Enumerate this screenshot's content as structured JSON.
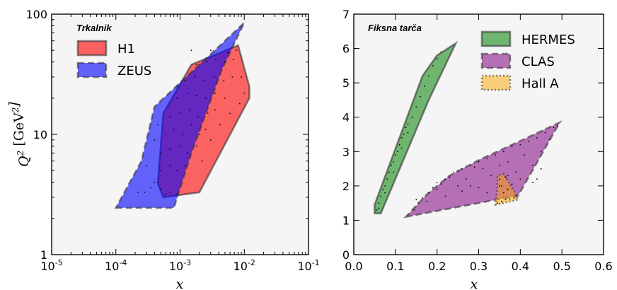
{
  "chart_data": [
    {
      "type": "area",
      "title": "Trkalnik",
      "xlabel": "x",
      "ylabel": "Q^2 [GeV^2]",
      "xscale": "log",
      "yscale": "log",
      "xlim": [
        1e-05,
        0.1
      ],
      "ylim": [
        1,
        100
      ],
      "xticks": [
        1e-05,
        0.0001,
        0.001,
        0.01,
        0.1
      ],
      "xtick_labels": [
        {
          "base": "10",
          "exp": "-5"
        },
        {
          "base": "10",
          "exp": "-4"
        },
        {
          "base": "10",
          "exp": "-3"
        },
        {
          "base": "10",
          "exp": "-2"
        },
        {
          "base": "10",
          "exp": "-1"
        }
      ],
      "yticks": [
        1,
        10,
        100
      ],
      "ytick_labels": [
        "1",
        "10",
        "100"
      ],
      "legend_position": "upper-left",
      "series": [
        {
          "name": "H1",
          "color": "#ff0000",
          "alpha": 0.6,
          "linestyle": "solid",
          "polygon": [
            [
              0.00045,
              3.9
            ],
            [
              0.00055,
              3.0
            ],
            [
              0.002,
              3.3
            ],
            [
              0.012,
              20
            ],
            [
              0.012,
              25
            ],
            [
              0.008,
              55
            ],
            [
              0.0015,
              38
            ],
            [
              0.00055,
              15
            ]
          ]
        },
        {
          "name": "ZEUS",
          "color": "#0000ff",
          "alpha": 0.6,
          "linestyle": "dashed",
          "polygon": [
            [
              0.0001,
              2.45
            ],
            [
              0.00055,
              2.45
            ],
            [
              0.0008,
              2.45
            ],
            [
              0.0015,
              7
            ],
            [
              0.0045,
              35
            ],
            [
              0.01,
              85
            ],
            [
              0.0004,
              17
            ],
            [
              0.00025,
              6
            ]
          ]
        }
      ],
      "points": [
        [
          0.0004,
          4
        ],
        [
          0.0005,
          3.5
        ],
        [
          0.0006,
          3.2
        ],
        [
          0.0007,
          3.3
        ],
        [
          0.0009,
          3.2
        ],
        [
          0.0005,
          5
        ],
        [
          0.0007,
          5.5
        ],
        [
          0.0009,
          5
        ],
        [
          0.0012,
          5.5
        ],
        [
          0.0005,
          7
        ],
        [
          0.0007,
          7.5
        ],
        [
          0.001,
          8
        ],
        [
          0.0013,
          7
        ],
        [
          0.0018,
          8
        ],
        [
          0.0006,
          10
        ],
        [
          0.0008,
          11
        ],
        [
          0.0011,
          10
        ],
        [
          0.0015,
          12
        ],
        [
          0.002,
          10
        ],
        [
          0.0025,
          11
        ],
        [
          0.0007,
          14
        ],
        [
          0.001,
          15
        ],
        [
          0.0014,
          16
        ],
        [
          0.0019,
          14
        ],
        [
          0.0027,
          15
        ],
        [
          0.0035,
          16
        ],
        [
          0.0009,
          20
        ],
        [
          0.0013,
          22
        ],
        [
          0.0018,
          21
        ],
        [
          0.0025,
          20
        ],
        [
          0.0035,
          22
        ],
        [
          0.005,
          20
        ],
        [
          0.0012,
          28
        ],
        [
          0.0017,
          30
        ],
        [
          0.0024,
          28
        ],
        [
          0.0034,
          30
        ],
        [
          0.0048,
          28
        ],
        [
          0.0065,
          30
        ],
        [
          0.0018,
          38
        ],
        [
          0.0026,
          40
        ],
        [
          0.0036,
          42
        ],
        [
          0.005,
          40
        ],
        [
          0.0068,
          42
        ],
        [
          0.0015,
          50
        ],
        [
          0.003,
          50
        ],
        [
          0.0055,
          48
        ],
        [
          0.0075,
          50
        ],
        [
          0.009,
          30
        ],
        [
          0.01,
          22
        ],
        [
          0.0085,
          18
        ],
        [
          0.00028,
          3.3
        ],
        [
          0.00022,
          3.3
        ],
        [
          0.00035,
          3.6
        ],
        [
          0.0003,
          5.5
        ],
        [
          0.0004,
          9
        ],
        [
          0.00045,
          12
        ],
        [
          0.0009,
          25
        ],
        [
          0.0022,
          6
        ],
        [
          0.003,
          9
        ],
        [
          0.0042,
          12
        ],
        [
          0.006,
          15
        ]
      ]
    },
    {
      "type": "area",
      "title": "Fiksna tarča",
      "xlabel": "x",
      "xlim": [
        0,
        0.6
      ],
      "ylim": [
        0,
        7
      ],
      "xticks": [
        0,
        0.1,
        0.2,
        0.3,
        0.4,
        0.5,
        0.6
      ],
      "xtick_labels": [
        "0.0",
        "0.1",
        "0.2",
        "0.3",
        "0.4",
        "0.5",
        "0.6"
      ],
      "yticks": [
        0,
        1,
        2,
        3,
        4,
        5,
        6,
        7
      ],
      "ytick_labels": [
        "0",
        "1",
        "2",
        "3",
        "4",
        "5",
        "6",
        "7"
      ],
      "legend_position": "upper-right",
      "series": [
        {
          "name": "HERMES",
          "color": "#008000",
          "alpha": 0.55,
          "linestyle": "solid",
          "polygon": [
            [
              0.05,
              1.2
            ],
            [
              0.065,
              1.2
            ],
            [
              0.18,
              4.5
            ],
            [
              0.245,
              6.15
            ],
            [
              0.2,
              5.8
            ],
            [
              0.165,
              5.2
            ],
            [
              0.05,
              1.45
            ]
          ]
        },
        {
          "name": "CLAS",
          "color": "#800080",
          "alpha": 0.55,
          "linestyle": "dashed",
          "polygon": [
            [
              0.125,
              1.1
            ],
            [
              0.395,
              1.72
            ],
            [
              0.495,
              3.85
            ],
            [
              0.38,
              3.2
            ],
            [
              0.3,
              2.75
            ],
            [
              0.23,
              2.3
            ],
            [
              0.175,
              1.75
            ]
          ]
        },
        {
          "name": "Hall A",
          "color": "#ffa500",
          "alpha": 0.5,
          "linestyle": "dotted",
          "polygon": [
            [
              0.34,
              1.45
            ],
            [
              0.395,
              1.6
            ],
            [
              0.385,
              1.85
            ],
            [
              0.36,
              2.35
            ],
            [
              0.345,
              2.3
            ],
            [
              0.345,
              1.9
            ]
          ]
        }
      ],
      "points": [
        [
          0.055,
          1.3
        ],
        [
          0.06,
          1.5
        ],
        [
          0.065,
          1.7
        ],
        [
          0.07,
          1.9
        ],
        [
          0.075,
          2.0
        ],
        [
          0.08,
          2.2
        ],
        [
          0.085,
          2.4
        ],
        [
          0.09,
          2.6
        ],
        [
          0.095,
          2.7
        ],
        [
          0.1,
          2.9
        ],
        [
          0.105,
          3.0
        ],
        [
          0.11,
          3.2
        ],
        [
          0.115,
          3.4
        ],
        [
          0.12,
          3.5
        ],
        [
          0.125,
          3.7
        ],
        [
          0.13,
          3.8
        ],
        [
          0.14,
          4.0
        ],
        [
          0.15,
          4.3
        ],
        [
          0.16,
          4.6
        ],
        [
          0.17,
          4.9
        ],
        [
          0.18,
          5.2
        ],
        [
          0.19,
          5.5
        ],
        [
          0.2,
          5.7
        ],
        [
          0.21,
          5.9
        ],
        [
          0.06,
          1.35
        ],
        [
          0.075,
          1.8
        ],
        [
          0.095,
          2.4
        ],
        [
          0.115,
          3.1
        ],
        [
          0.13,
          3.55
        ],
        [
          0.145,
          1.3
        ],
        [
          0.15,
          1.6
        ],
        [
          0.155,
          1.5
        ],
        [
          0.165,
          1.65
        ],
        [
          0.175,
          1.55
        ],
        [
          0.18,
          1.8
        ],
        [
          0.19,
          1.95
        ],
        [
          0.2,
          1.9
        ],
        [
          0.2,
          2.1
        ],
        [
          0.21,
          2.05
        ],
        [
          0.22,
          2.2
        ],
        [
          0.23,
          2.25
        ],
        [
          0.24,
          2.4
        ],
        [
          0.25,
          2.45
        ],
        [
          0.26,
          2.5
        ],
        [
          0.27,
          2.2
        ],
        [
          0.28,
          2.6
        ],
        [
          0.29,
          2.55
        ],
        [
          0.3,
          2.7
        ],
        [
          0.31,
          2.5
        ],
        [
          0.32,
          2.8
        ],
        [
          0.33,
          2.3
        ],
        [
          0.34,
          2.9
        ],
        [
          0.35,
          2.6
        ],
        [
          0.36,
          3.0
        ],
        [
          0.37,
          2.7
        ],
        [
          0.38,
          3.15
        ],
        [
          0.39,
          2.4
        ],
        [
          0.4,
          3.2
        ],
        [
          0.41,
          2.9
        ],
        [
          0.42,
          3.3
        ],
        [
          0.43,
          2.6
        ],
        [
          0.44,
          3.4
        ],
        [
          0.45,
          3.0
        ],
        [
          0.46,
          3.55
        ],
        [
          0.47,
          3.35
        ],
        [
          0.48,
          3.7
        ],
        [
          0.49,
          3.75
        ],
        [
          0.25,
          2.0
        ],
        [
          0.28,
          2.0
        ],
        [
          0.3,
          1.95
        ],
        [
          0.32,
          1.8
        ],
        [
          0.22,
          1.7
        ],
        [
          0.26,
          1.85
        ],
        [
          0.35,
          2.0
        ],
        [
          0.37,
          2.3
        ],
        [
          0.4,
          2.2
        ],
        [
          0.43,
          2.1
        ],
        [
          0.44,
          2.2
        ],
        [
          0.45,
          2.5
        ],
        [
          0.355,
          1.55
        ],
        [
          0.365,
          1.6
        ],
        [
          0.375,
          1.62
        ],
        [
          0.385,
          1.65
        ],
        [
          0.36,
          1.8
        ],
        [
          0.37,
          1.9
        ],
        [
          0.355,
          2.0
        ],
        [
          0.38,
          2.05
        ],
        [
          0.35,
          2.2
        ],
        [
          0.365,
          2.25
        ],
        [
          0.39,
          1.7
        ],
        [
          0.345,
          1.5
        ]
      ]
    }
  ]
}
